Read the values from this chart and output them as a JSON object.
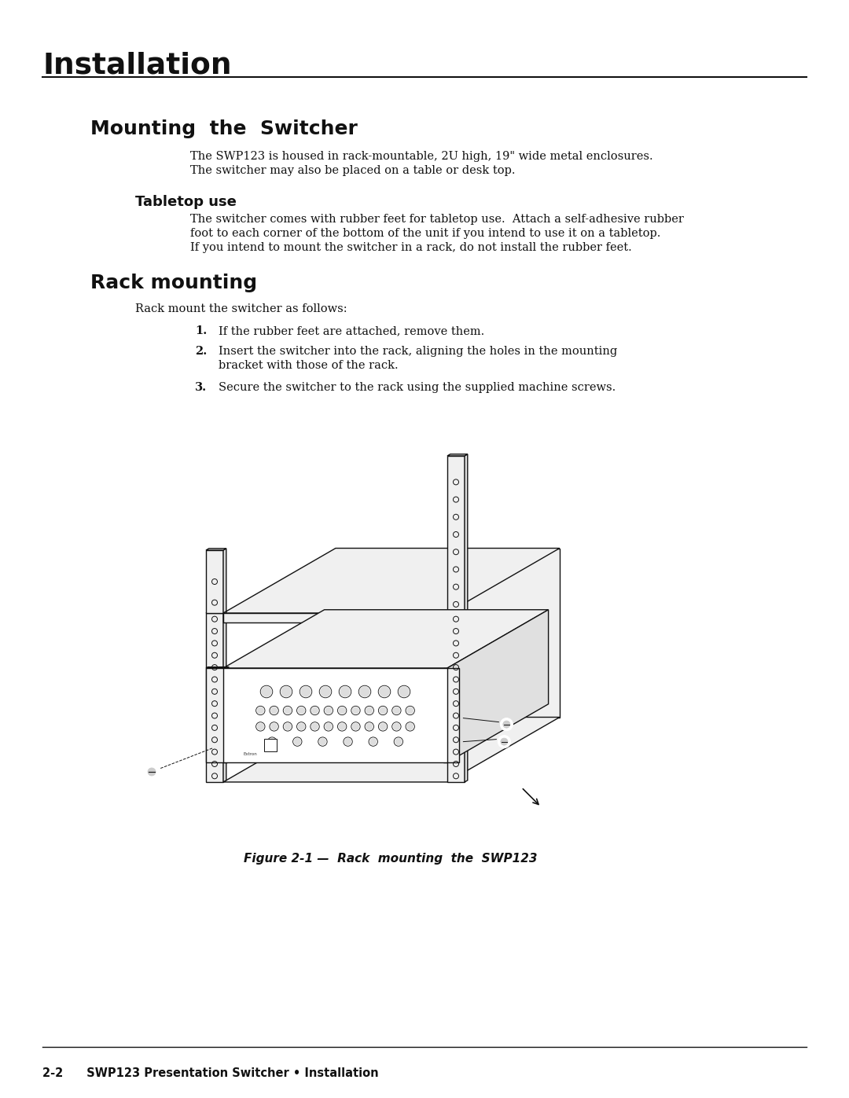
{
  "page_title": "Installation",
  "section_title": "Mounting  the  Switcher",
  "section_body_line1": "The SWP123 is housed in rack-mountable, 2U high, 19\" wide metal enclosures.",
  "section_body_line2": "The switcher may also be placed on a table or desk top.",
  "subsection1_title": "Tabletop use",
  "subsection1_body_line1": "The switcher comes with rubber feet for tabletop use.  Attach a self-adhesive rubber",
  "subsection1_body_line2": "foot to each corner of the bottom of the unit if you intend to use it on a tabletop.",
  "subsection1_body_line3": "If you intend to mount the switcher in a rack, do not install the rubber feet.",
  "subsection2_title": "Rack mounting",
  "subsection2_intro": "Rack mount the switcher as follows:",
  "item1": "If the rubber feet are attached, remove them.",
  "item2_line1": "Insert the switcher into the rack, aligning the holes in the mounting",
  "item2_line2": "bracket with those of the rack.",
  "item3": "Secure the switcher to the rack using the supplied machine screws.",
  "figure_caption": "Figure 2-1 —  Rack  mounting  the  SWP123",
  "footer_text": "2-2    SWP123 Presentation Switcher • Installation",
  "bg_color": "#ffffff",
  "line_color": "#1a1a1a"
}
